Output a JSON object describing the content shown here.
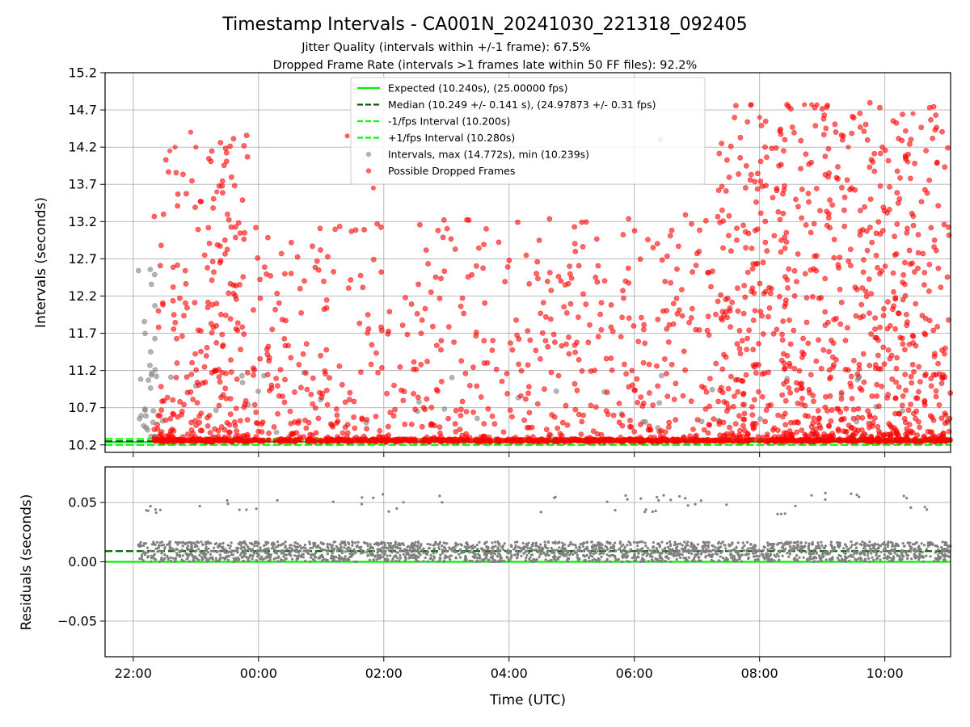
{
  "figure": {
    "title": "Timestamp Intervals - CA001N_20241030_221318_092405",
    "subtitle1": "Jitter Quality (intervals within +/-1 frame): 67.5%",
    "subtitle2": "Dropped Frame Rate (intervals >1 frames late within 50 FF files): 92.2%"
  },
  "colors": {
    "expected": "#00ee00",
    "median": "#006400",
    "interval_band": "#00ff00",
    "normal_points": "#808080",
    "dropped_points": "#ff0000",
    "residual_points": "#808080",
    "grid": "#b0b0b0"
  },
  "chart_data": [
    {
      "type": "scatter",
      "panel": "top",
      "ylabel": "Intervals (seconds)",
      "xlabel": "",
      "ylim": [
        10.1,
        15.2
      ],
      "xlim": [
        "21:33",
        "11:03"
      ],
      "x_ticks": [
        "22:00",
        "00:00",
        "02:00",
        "04:00",
        "06:00",
        "08:00",
        "10:00"
      ],
      "y_ticks": [
        "10.2",
        "10.7",
        "11.2",
        "11.7",
        "12.2",
        "12.7",
        "13.2",
        "13.7",
        "14.2",
        "14.7",
        "15.2"
      ],
      "grid": true,
      "legend_position": "upper-center",
      "lines": [
        {
          "name": "Expected (10.240s), (25.00000 fps)",
          "y": 10.24,
          "style": "solid",
          "color": "#00ee00"
        },
        {
          "name": "Median (10.249 +/- 0.141 s), (24.97873 +/- 0.31 fps)",
          "y": 10.249,
          "style": "dashed",
          "color": "#006400"
        },
        {
          "name": "-1/fps Interval (10.200s)",
          "y": 10.2,
          "style": "dashed",
          "color": "#00ff00"
        },
        {
          "name": "+1/fps Interval (10.280s)",
          "y": 10.28,
          "style": "dashed",
          "color": "#00ff00"
        }
      ],
      "series": [
        {
          "name": "Intervals, max (14.772s), min (10.239s)",
          "kind": "normal",
          "color": "#808080"
        },
        {
          "name": "Possible Dropped Frames",
          "kind": "dropped",
          "color": "#ff0000"
        }
      ],
      "clusters": [
        {
          "series": "normal",
          "t_start": "22:05",
          "t_end": "22:22",
          "y_min": 10.3,
          "y_max": 12.9,
          "count": 28
        },
        {
          "series": "normal",
          "t_start": "22:20",
          "t_end": "11:03",
          "y_min": 10.3,
          "y_max": 11.2,
          "count": 45
        },
        {
          "series": "dropped",
          "t_start": "22:20",
          "t_end": "23:50",
          "y_min": 10.3,
          "y_max": 14.4,
          "count": 230
        },
        {
          "series": "dropped",
          "t_start": "23:55",
          "t_end": "07:20",
          "y_min": 10.3,
          "y_max": 13.3,
          "count": 560
        },
        {
          "series": "dropped",
          "t_start": "07:20",
          "t_end": "11:03",
          "y_min": 10.3,
          "y_max": 14.8,
          "count": 760
        },
        {
          "series": "dropped",
          "t_start": "07:30",
          "t_end": "10:30",
          "y_min": 13.0,
          "y_max": 14.8,
          "count": 30
        },
        {
          "series": "dropped",
          "t_start": "22:20",
          "t_end": "11:03",
          "y_min": 10.24,
          "y_max": 10.28,
          "count": 900
        }
      ],
      "notable_points": [
        {
          "x": "22:35",
          "y": 14.15
        },
        {
          "x": "22:40",
          "y": 14.2
        },
        {
          "x": "22:55",
          "y": 14.4
        },
        {
          "x": "23:00",
          "y": 14.2
        },
        {
          "x": "23:20",
          "y": 13.6
        },
        {
          "x": "01:25",
          "y": 14.35
        },
        {
          "x": "01:50",
          "y": 13.65
        },
        {
          "x": "06:25",
          "y": 14.3
        },
        {
          "x": "07:52",
          "y": 14.77
        },
        {
          "x": "08:00",
          "y": 14.6
        },
        {
          "x": "08:43",
          "y": 14.77
        },
        {
          "x": "08:50",
          "y": 14.77
        },
        {
          "x": "08:55",
          "y": 14.77
        },
        {
          "x": "09:25",
          "y": 14.2
        },
        {
          "x": "10:27",
          "y": 14.65
        },
        {
          "x": "10:22",
          "y": 14.0
        }
      ]
    },
    {
      "type": "scatter",
      "panel": "bottom",
      "ylabel": "Residuals (seconds)",
      "xlabel": "Time (UTC)",
      "ylim": [
        -0.08,
        0.08
      ],
      "xlim": [
        "21:33",
        "11:03"
      ],
      "x_ticks": [
        "22:00",
        "00:00",
        "02:00",
        "04:00",
        "06:00",
        "08:00",
        "10:00"
      ],
      "y_ticks": [
        "−0.05",
        "0.00",
        "0.05"
      ],
      "y_tick_values": [
        -0.05,
        0.0,
        0.05
      ],
      "grid": true,
      "lines": [
        {
          "y": 0.0,
          "style": "solid",
          "color": "#00ee00"
        },
        {
          "y": 0.009,
          "style": "dashed",
          "color": "#006400"
        }
      ],
      "clusters": [
        {
          "t_start": "22:05",
          "t_end": "11:03",
          "y_min": 0.0,
          "y_max": 0.017,
          "count": 2200
        },
        {
          "t_start": "22:05",
          "t_end": "11:03",
          "y_min": 0.04,
          "y_max": 0.058,
          "count": 60
        }
      ]
    }
  ]
}
